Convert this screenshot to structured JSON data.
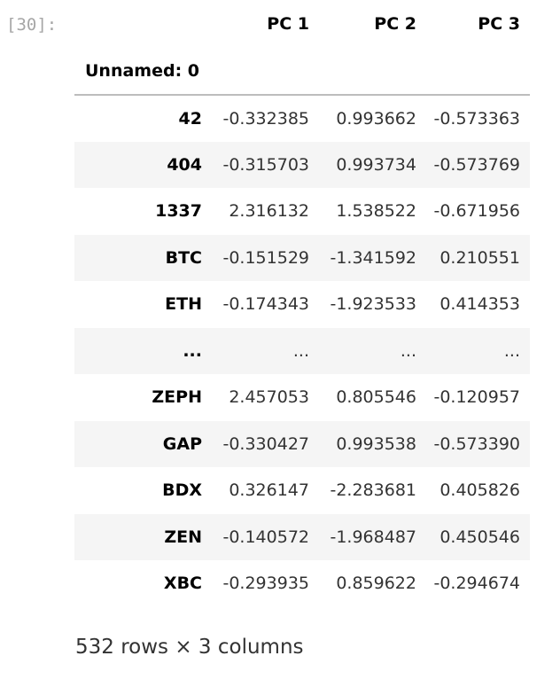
{
  "cell": {
    "prompt": "[30]:"
  },
  "table": {
    "columns": [
      "PC 1",
      "PC 2",
      "PC 3"
    ],
    "index_name": "Unnamed: 0",
    "rows": [
      {
        "index": "42",
        "values": [
          "-0.332385",
          "0.993662",
          "-0.573363"
        ]
      },
      {
        "index": "404",
        "values": [
          "-0.315703",
          "0.993734",
          "-0.573769"
        ]
      },
      {
        "index": "1337",
        "values": [
          "2.316132",
          "1.538522",
          "-0.671956"
        ]
      },
      {
        "index": "BTC",
        "values": [
          "-0.151529",
          "-1.341592",
          "0.210551"
        ]
      },
      {
        "index": "ETH",
        "values": [
          "-0.174343",
          "-1.923533",
          "0.414353"
        ]
      },
      {
        "index": "...",
        "values": [
          "...",
          "...",
          "..."
        ]
      },
      {
        "index": "ZEPH",
        "values": [
          "2.457053",
          "0.805546",
          "-0.120957"
        ]
      },
      {
        "index": "GAP",
        "values": [
          "-0.330427",
          "0.993538",
          "-0.573390"
        ]
      },
      {
        "index": "BDX",
        "values": [
          "0.326147",
          "-2.283681",
          "0.405826"
        ]
      },
      {
        "index": "ZEN",
        "values": [
          "-0.140572",
          "-1.968487",
          "0.450546"
        ]
      },
      {
        "index": "XBC",
        "values": [
          "-0.293935",
          "0.859622",
          "-0.294674"
        ]
      }
    ]
  },
  "summary": "532 rows × 3 columns"
}
